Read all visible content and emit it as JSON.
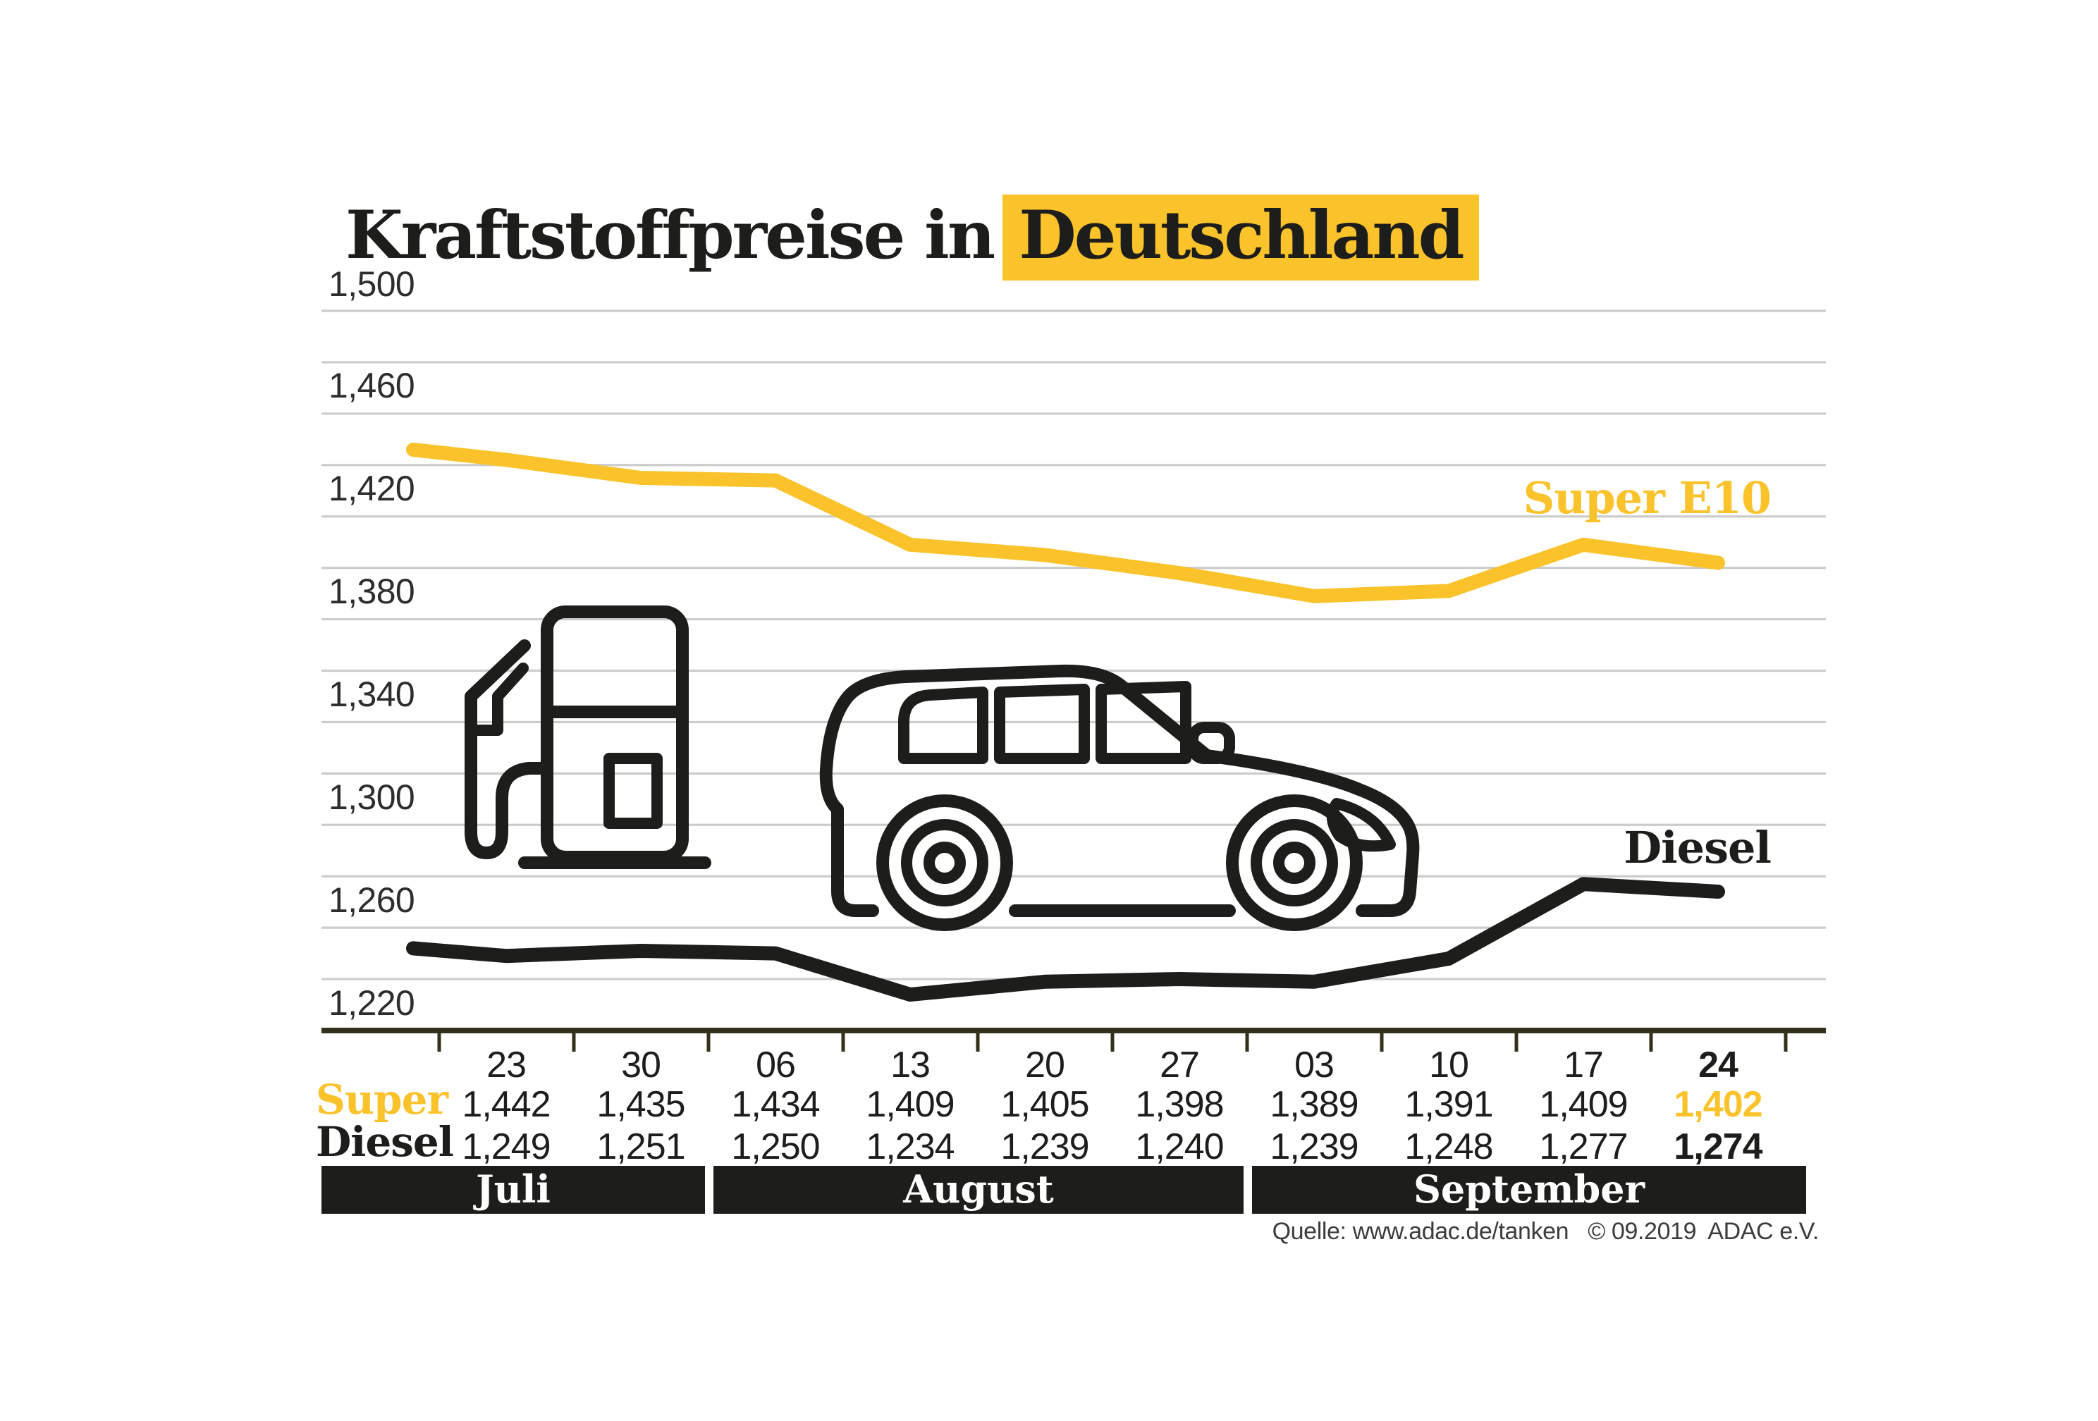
{
  "header": {
    "title_prefix": "Kraftstoffpreise in",
    "title_highlight": "Deutschland"
  },
  "chart_data": {
    "type": "line",
    "title": "Kraftstoffpreise in Deutschland",
    "x_labels": [
      "23",
      "30",
      "06",
      "13",
      "20",
      "27",
      "03",
      "10",
      "17",
      "24"
    ],
    "month_groups": [
      {
        "label": "Juli",
        "span": 2
      },
      {
        "label": "August",
        "span": 4
      },
      {
        "label": "September",
        "span": 4
      }
    ],
    "series": [
      {
        "name": "Super E10",
        "color": "#FAC22B",
        "values": [
          1.442,
          1.435,
          1.434,
          1.409,
          1.405,
          1.398,
          1.389,
          1.391,
          1.409,
          1.402
        ]
      },
      {
        "name": "Diesel",
        "color": "#1D1D1B",
        "values": [
          1.249,
          1.251,
          1.25,
          1.234,
          1.239,
          1.24,
          1.239,
          1.248,
          1.277,
          1.274
        ]
      }
    ],
    "lead_in_estimated": {
      "Super E10": 1.446,
      "Diesel": 1.252
    },
    "ylim": [
      1.22,
      1.5
    ],
    "ytick_labels": [
      "1,500",
      "1,460",
      "1,420",
      "1,380",
      "1,340",
      "1,300",
      "1,260",
      "1,220"
    ],
    "ytick_minor_step": 0.02,
    "grid": "horizontal",
    "legend_position": "right-of-line-ends"
  },
  "table": {
    "row_labels": {
      "super": "Super",
      "diesel": "Diesel"
    },
    "dates": [
      "23",
      "30",
      "06",
      "13",
      "20",
      "27",
      "03",
      "10",
      "17",
      "24"
    ],
    "super_values": [
      "1,442",
      "1,435",
      "1,434",
      "1,409",
      "1,405",
      "1,398",
      "1,389",
      "1,391",
      "1,409",
      "1,402"
    ],
    "diesel_values": [
      "1,249",
      "1,251",
      "1,250",
      "1,234",
      "1,239",
      "1,240",
      "1,239",
      "1,248",
      "1,277",
      "1,274"
    ],
    "last_column_emphasis": true
  },
  "legend": {
    "super": "Super E10",
    "diesel": "Diesel"
  },
  "footer": {
    "source": "Quelle: www.adac.de/tanken   © 09.2019  ADAC e.V."
  },
  "colors": {
    "accent_yellow": "#FAC22B",
    "ink": "#1D1D1B",
    "grid": "#CCCCCC",
    "axis": "#33301B"
  },
  "icons": [
    "fuel-pump-icon",
    "car-icon"
  ]
}
